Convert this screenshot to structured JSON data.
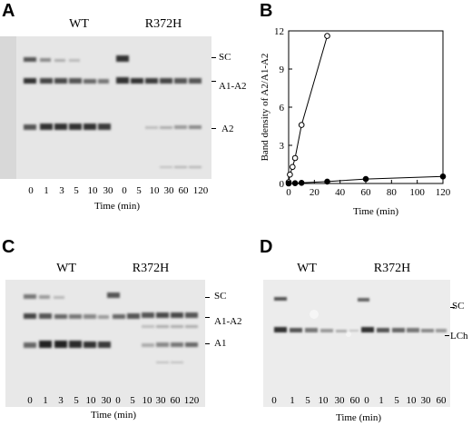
{
  "panels": {
    "A": {
      "letter": "A",
      "groups": [
        "WT",
        "R372H"
      ],
      "bands": [
        "SC",
        "A1-A2",
        "A2"
      ],
      "lanes": [
        "0",
        "1",
        "3",
        "5",
        "10",
        "30",
        "0",
        "5",
        "10",
        "30",
        "60",
        "120"
      ],
      "xlabel": "Time (min)"
    },
    "B": {
      "letter": "B"
    },
    "C": {
      "letter": "C",
      "groups": [
        "WT",
        "R372H"
      ],
      "bands": [
        "SC",
        "A1-A2",
        "A1"
      ],
      "lanes": [
        "0",
        "1",
        "3",
        "5",
        "10",
        "30",
        "0",
        "5",
        "10",
        "30",
        "60",
        "120"
      ],
      "xlabel": "Time (min)"
    },
    "D": {
      "letter": "D",
      "groups": [
        "WT",
        "R372H"
      ],
      "bands": [
        "SC",
        "LCh"
      ],
      "lanes": [
        "0",
        "1",
        "5",
        "10",
        "30",
        "60",
        "0",
        "1",
        "5",
        "10",
        "30",
        "60"
      ],
      "xlabel": "Time (min)"
    }
  },
  "chart_data": {
    "type": "line",
    "title": "",
    "xlabel": "Time (min)",
    "ylabel": "Band density of A2/A1-A2",
    "xlim": [
      0,
      120
    ],
    "ylim": [
      0,
      12
    ],
    "xticks": [
      "0",
      "20",
      "40",
      "60",
      "80",
      "100",
      "120"
    ],
    "yticks": [
      "0",
      "3",
      "6",
      "9",
      "12"
    ],
    "grid": false,
    "legend": "none",
    "series": [
      {
        "marker": "open-circle",
        "color": "#000000",
        "x": [
          0,
          1,
          3,
          5,
          10,
          30
        ],
        "y": [
          0.1,
          0.7,
          1.3,
          2.0,
          4.6,
          11.6
        ]
      },
      {
        "marker": "filled-circle",
        "color": "#000000",
        "x": [
          0,
          5,
          10,
          30,
          60,
          120
        ],
        "y": [
          0.0,
          0.02,
          0.05,
          0.15,
          0.35,
          0.55
        ]
      }
    ]
  }
}
